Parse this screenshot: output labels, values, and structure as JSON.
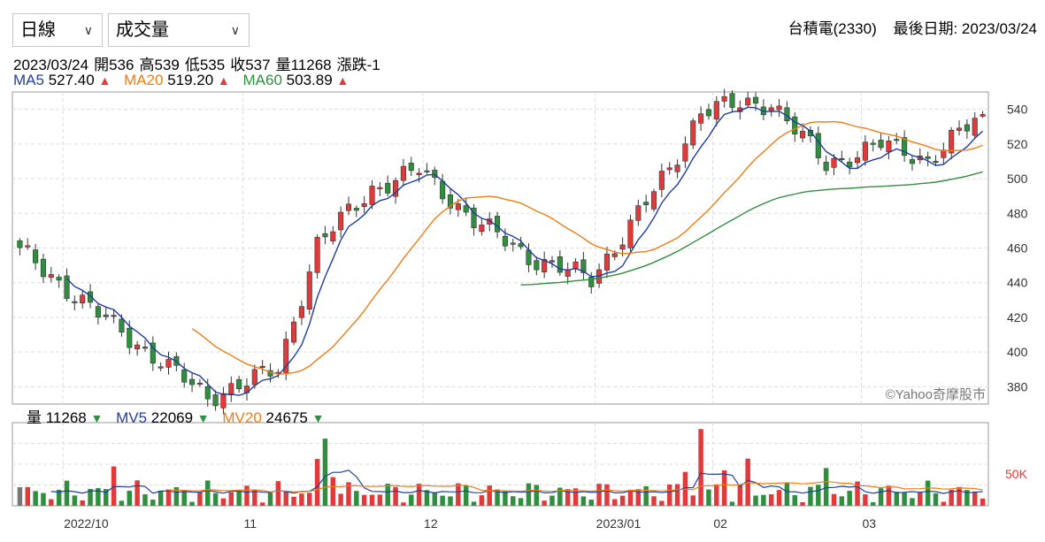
{
  "controls": {
    "period": "日線",
    "indicator": "成交量"
  },
  "stock": {
    "name": "台積電(2330)",
    "last_date": "最後日期: 2023/03/24"
  },
  "ohlc_line": {
    "date": "2023/03/24",
    "open": "開536",
    "high": "高539",
    "low": "低535",
    "close": "收537",
    "volume": "量11268",
    "change": "漲跌-1"
  },
  "ma_legend": [
    {
      "label": "MA5",
      "value": "527.40",
      "arrow": "▲"
    },
    {
      "label": "MA20",
      "value": "519.20",
      "arrow": "▲"
    },
    {
      "label": "MA60",
      "value": "503.89",
      "arrow": "▲"
    }
  ],
  "volume_legend": [
    {
      "label": "量",
      "value": "11268",
      "arrow": "▼"
    },
    {
      "label": "MV5",
      "value": "22069",
      "arrow": "▼"
    },
    {
      "label": "MV20",
      "value": "24675",
      "arrow": "▼"
    }
  ],
  "watermark": "©Yahoo奇摩股市",
  "colors": {
    "up": "#e03a3a",
    "down": "#2f8f3e",
    "ma5": "#1f3f9f",
    "ma20": "#ef7d15",
    "ma60": "#2f8f3e",
    "neutral": "#777777"
  },
  "chart_data": {
    "type": "candlestick",
    "price_axis": {
      "min": 370,
      "max": 550,
      "ticks": [
        540,
        520,
        500,
        480,
        460,
        440,
        420,
        400,
        380
      ]
    },
    "volume_axis": {
      "min": 0,
      "max": 130000,
      "ticks": [
        {
          "value": 50000,
          "label": "50K"
        }
      ]
    },
    "x_labels": [
      {
        "index": 6,
        "label": "2022/10"
      },
      {
        "index": 29,
        "label": "11"
      },
      {
        "index": 52,
        "label": "12"
      },
      {
        "index": 74,
        "label": "2023/01"
      },
      {
        "index": 89,
        "label": "02"
      },
      {
        "index": 108,
        "label": "03"
      }
    ],
    "last_point": {
      "date": "2023/03/24",
      "open": 536,
      "high": 539,
      "low": 535,
      "close": 537,
      "volume": 11268
    },
    "key_levels": [
      {
        "index": 0,
        "close": 458
      },
      {
        "index": 12,
        "close": 415
      },
      {
        "index": 24,
        "close": 374
      },
      {
        "index": 33,
        "close": 390
      },
      {
        "index": 38,
        "close": 462
      },
      {
        "index": 45,
        "close": 494
      },
      {
        "index": 51,
        "close": 505
      },
      {
        "index": 58,
        "close": 476
      },
      {
        "index": 65,
        "close": 455
      },
      {
        "index": 73,
        "close": 442
      },
      {
        "index": 83,
        "close": 505
      },
      {
        "index": 87,
        "close": 540
      },
      {
        "index": 96,
        "close": 544
      },
      {
        "index": 103,
        "close": 508
      },
      {
        "index": 110,
        "close": 520
      },
      {
        "index": 116,
        "close": 511
      },
      {
        "index": 123,
        "close": 537
      }
    ],
    "ma_series": [
      {
        "name": "MA5",
        "start_index": 6,
        "last": 527.4
      },
      {
        "name": "MA20",
        "start_index": 22,
        "last": 519.2
      },
      {
        "name": "MA60",
        "start_index": 64,
        "last": 503.89
      }
    ],
    "mv_series": [
      {
        "name": "MV5",
        "last": 22069
      },
      {
        "name": "MV20",
        "last": 24675
      }
    ]
  }
}
